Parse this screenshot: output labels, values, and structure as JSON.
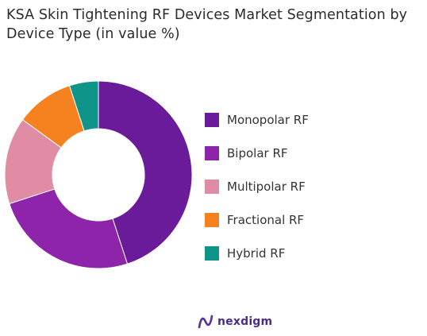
{
  "title": "KSA Skin Tightening RF Devices Market  Segmentation by\nDevice Type (in value %)",
  "brand": "nexdigm",
  "chart_data": {
    "type": "pie",
    "variant": "donut",
    "title": "KSA Skin Tightening RF Devices Market  Segmentation by Device Type (in value %)",
    "categories": [
      "Monopolar RF",
      "Bipolar RF",
      "Multipolar RF",
      "Fractional RF",
      "Hybrid RF"
    ],
    "values": [
      45,
      25,
      15,
      10,
      5
    ],
    "colors": [
      "#6a1b9a",
      "#8e24aa",
      "#e08ca5",
      "#f5821f",
      "#0e9488"
    ],
    "legend_position": "right"
  }
}
